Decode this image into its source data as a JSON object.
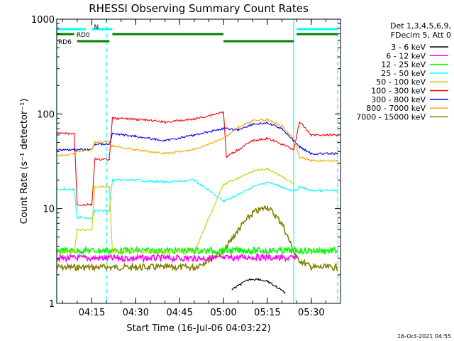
{
  "chart_data": {
    "type": "line",
    "title": "RHESSI Observing Summary Count Rates",
    "xlabel": "Start Time (16-Jul-06 04:03:22)",
    "ylabel": "Count Rate (s⁻¹ detector⁻¹)",
    "y_scale": "log",
    "ylim": [
      1,
      1000
    ],
    "xlim": [
      "04:03",
      "05:40"
    ],
    "x_ticks": [
      "04:15",
      "04:30",
      "04:45",
      "05:00",
      "05:15",
      "05:30"
    ],
    "y_ticks": [
      "1",
      "10",
      "100",
      "1000"
    ],
    "legend_header": [
      "Det 1,3,4,5,6,9,",
      "FDecim 5, Att 0"
    ],
    "timestamp": "16-Oct-2021 04:55",
    "flags": [
      {
        "label": "N",
        "color": "#00ffff",
        "segments": [
          [
            "04:03",
            "04:13"
          ],
          [
            "04:15",
            "04:22"
          ],
          [
            "05:25",
            "05:39"
          ]
        ]
      },
      {
        "label": "RD0",
        "color": "#008000",
        "segments": [
          [
            "04:03",
            "04:09"
          ],
          [
            "04:22",
            "05:00"
          ],
          [
            "05:25",
            "05:39"
          ]
        ]
      },
      {
        "label": "RD6",
        "color": "#008000",
        "segments": [
          [
            "04:10",
            "04:21"
          ],
          [
            "05:00",
            "05:24"
          ]
        ]
      }
    ],
    "markers": [
      "04:03",
      "04:20",
      "05:24",
      "05:39"
    ],
    "series": [
      {
        "name": "3 - 6 keV",
        "color": "#000000",
        "x": [
          "05:03",
          "05:06",
          "05:09",
          "05:12",
          "05:15",
          "05:18",
          "05:21"
        ],
        "values": [
          1.4,
          1.6,
          1.8,
          1.8,
          1.7,
          1.5,
          1.3
        ]
      },
      {
        "name": "6 - 12 keV",
        "color": "#ff00ff",
        "x": [
          "04:03",
          "04:10",
          "04:15",
          "04:20",
          "04:30",
          "04:40",
          "04:50",
          "05:00",
          "05:10",
          "05:20",
          "05:25"
        ],
        "values": [
          3.0,
          3.0,
          3.0,
          3.0,
          3.0,
          3.0,
          3.0,
          3.0,
          3.1,
          3.0,
          3.0
        ]
      },
      {
        "name": "12 - 25 keV",
        "color": "#00ff00",
        "x": [
          "04:03",
          "04:10",
          "04:20",
          "04:30",
          "04:40",
          "04:50",
          "05:00",
          "05:10",
          "05:20",
          "05:30",
          "05:39"
        ],
        "values": [
          3.6,
          3.6,
          3.6,
          3.6,
          3.6,
          3.6,
          3.6,
          3.6,
          3.6,
          3.6,
          3.6
        ]
      },
      {
        "name": "25 - 50 keV",
        "color": "#00ffff",
        "x": [
          "04:03",
          "04:09",
          "04:10",
          "04:15",
          "04:16",
          "04:21",
          "04:22",
          "04:30",
          "04:40",
          "04:50",
          "05:00",
          "05:05",
          "05:10",
          "05:15",
          "05:20",
          "05:24",
          "05:26",
          "05:30",
          "05:39"
        ],
        "values": [
          16,
          16,
          8,
          8,
          9.5,
          9.5,
          20,
          20,
          19,
          20,
          12,
          14,
          17,
          19,
          17,
          15,
          17,
          15.5,
          15.5
        ]
      },
      {
        "name": "50 - 100 keV",
        "color": "#cccc00",
        "x": [
          "04:03",
          "04:09",
          "04:10",
          "04:15",
          "04:16",
          "04:21",
          "04:22",
          "04:30",
          "04:40",
          "04:50",
          "05:00",
          "05:05",
          "05:10",
          "05:15",
          "05:20",
          "05:24"
        ],
        "values": [
          3.5,
          3.5,
          6,
          6,
          17,
          17,
          3.5,
          3.5,
          3.5,
          3.5,
          18,
          21,
          25,
          26,
          22,
          18
        ]
      },
      {
        "name": "100 - 300 keV",
        "color": "#ff0000",
        "x": [
          "04:03",
          "04:09",
          "04:10",
          "04:15",
          "04:16",
          "04:21",
          "04:22",
          "04:30",
          "04:40",
          "04:50",
          "05:00",
          "05:01",
          "05:05",
          "05:10",
          "05:15",
          "05:20",
          "05:24",
          "05:26",
          "05:30",
          "05:39"
        ],
        "values": [
          62,
          62,
          11,
          11,
          33,
          33,
          90,
          88,
          82,
          88,
          105,
          35,
          42,
          52,
          55,
          48,
          42,
          82,
          60,
          60
        ]
      },
      {
        "name": "300 - 800 keV",
        "color": "#0000ff",
        "x": [
          "04:03",
          "04:09",
          "04:10",
          "04:15",
          "04:16",
          "04:21",
          "04:22",
          "04:30",
          "04:40",
          "04:50",
          "05:00",
          "05:05",
          "05:10",
          "05:15",
          "05:20",
          "05:24",
          "05:26",
          "05:30",
          "05:39"
        ],
        "values": [
          42,
          42,
          42,
          42,
          48,
          48,
          62,
          58,
          52,
          60,
          70,
          68,
          78,
          80,
          70,
          52,
          45,
          38,
          38
        ]
      },
      {
        "name": "800 - 7000 keV",
        "color": "#ffa500",
        "x": [
          "04:03",
          "04:09",
          "04:10",
          "04:15",
          "04:16",
          "04:21",
          "04:22",
          "04:30",
          "04:40",
          "04:50",
          "05:00",
          "05:05",
          "05:10",
          "05:15",
          "05:20",
          "05:24",
          "05:26",
          "05:30",
          "05:39"
        ],
        "values": [
          36,
          38,
          40,
          42,
          50,
          50,
          46,
          42,
          38,
          42,
          55,
          72,
          85,
          87,
          75,
          55,
          35,
          32,
          32
        ]
      },
      {
        "name": "7000 - 15000 keV",
        "color": "#808000",
        "x": [
          "04:03",
          "04:10",
          "04:20",
          "04:30",
          "04:40",
          "04:50",
          "05:00",
          "05:05",
          "05:10",
          "05:15",
          "05:20",
          "05:25",
          "05:30",
          "05:39"
        ],
        "values": [
          2.4,
          2.4,
          2.4,
          2.4,
          2.4,
          2.4,
          3.5,
          6,
          9,
          10.5,
          7,
          3,
          2.4,
          2.4
        ]
      }
    ]
  }
}
